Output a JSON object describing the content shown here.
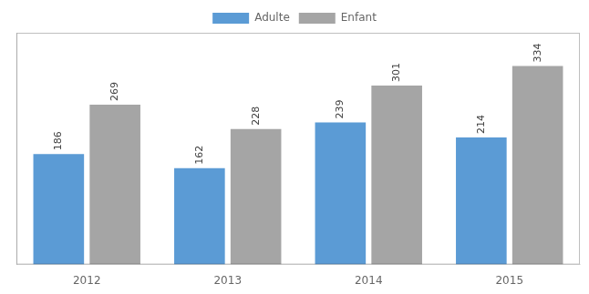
{
  "chart_data": {
    "type": "bar",
    "categories": [
      "2012",
      "2013",
      "2014",
      "2015"
    ],
    "series": [
      {
        "name": "Adulte",
        "color": "#5B9BD5",
        "values": [
          186,
          162,
          239,
          214
        ]
      },
      {
        "name": "Enfant",
        "color": "#A5A5A5",
        "values": [
          269,
          228,
          301,
          334
        ]
      }
    ],
    "ylim": [
      0,
      390
    ],
    "data_labels": true,
    "tick_labels": "x",
    "legend": "top",
    "grid": false
  }
}
